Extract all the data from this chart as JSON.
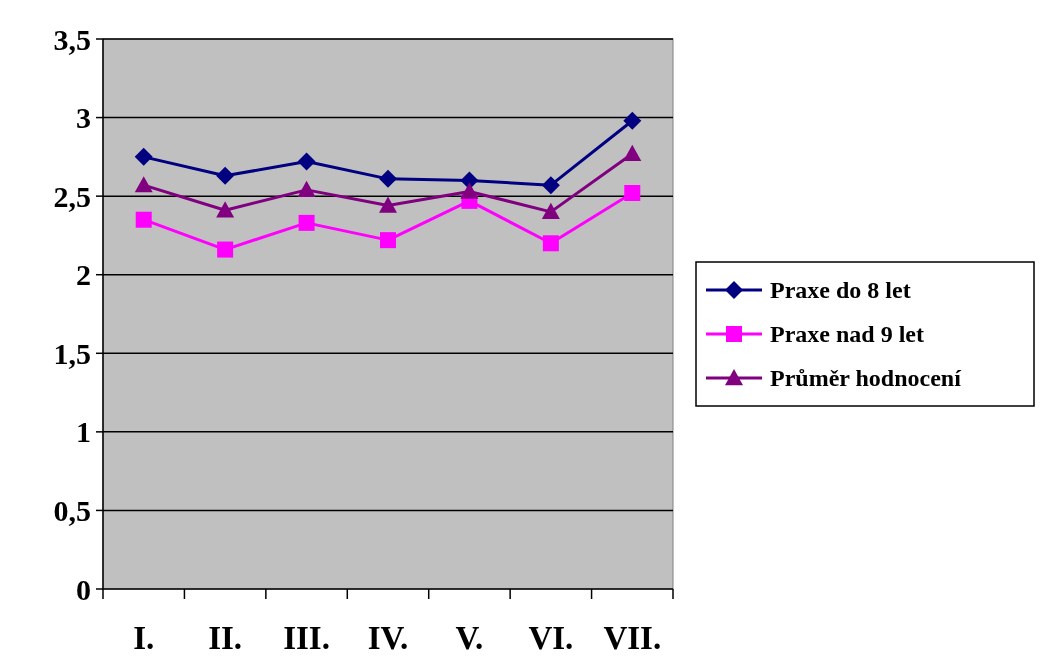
{
  "chart_data": {
    "type": "line",
    "categories": [
      "I.",
      "II.",
      "III.",
      "IV.",
      "V.",
      "VI.",
      "VII."
    ],
    "series": [
      {
        "name": "Praxe do 8 let",
        "color": "#000080",
        "marker": "diamond",
        "values": [
          2.75,
          2.63,
          2.72,
          2.61,
          2.6,
          2.57,
          2.98
        ]
      },
      {
        "name": "Praxe nad 9 let",
        "color": "#ff00ff",
        "marker": "square",
        "values": [
          2.35,
          2.16,
          2.33,
          2.22,
          2.47,
          2.2,
          2.52
        ]
      },
      {
        "name": "Průměr hodnocení",
        "color": "#800080",
        "marker": "triangle",
        "values": [
          2.57,
          2.41,
          2.54,
          2.44,
          2.53,
          2.4,
          2.77
        ]
      }
    ],
    "ylim": [
      0,
      3.5
    ],
    "yticks": [
      0,
      {
        "value": 0.5,
        "label": "0,5"
      },
      1,
      {
        "value": 1.5,
        "label": "1,5"
      },
      2,
      {
        "value": 2.5,
        "label": "2,5"
      },
      3,
      {
        "value": 3.5,
        "label": "3,5"
      }
    ],
    "grid": "y",
    "legend": "right"
  }
}
